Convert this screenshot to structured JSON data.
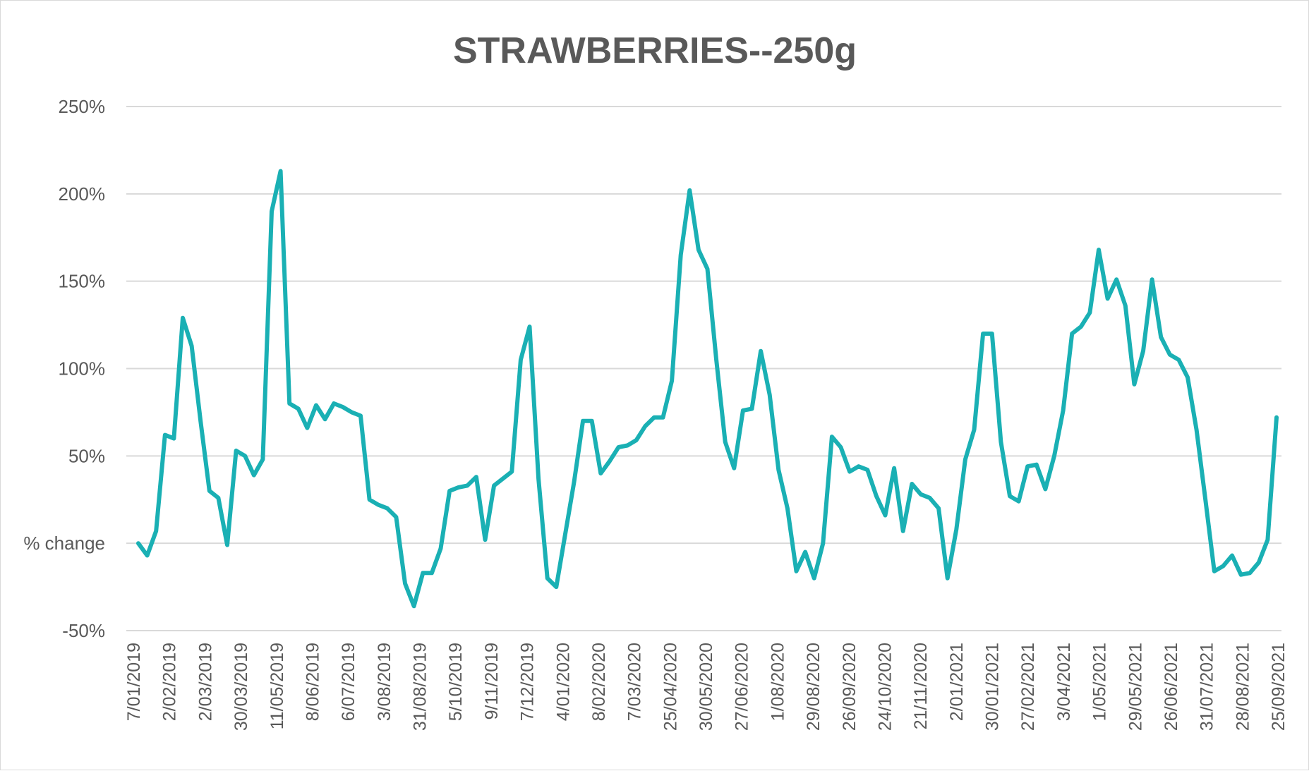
{
  "chart_data": {
    "type": "line",
    "title": "STRAWBERRIES--250g",
    "xlabel": "",
    "ylabel": "",
    "ylim": [
      -50,
      250
    ],
    "y_ticks": [
      {
        "value": 250,
        "label": "250%"
      },
      {
        "value": 200,
        "label": "200%"
      },
      {
        "value": 150,
        "label": "150%"
      },
      {
        "value": 100,
        "label": "100%"
      },
      {
        "value": 50,
        "label": "50%"
      },
      {
        "value": 0,
        "label": "% change"
      },
      {
        "value": -50,
        "label": "-50%"
      }
    ],
    "x_tick_labels": [
      "7/01/2019",
      "2/02/2019",
      "2/03/2019",
      "30/03/2019",
      "11/05/2019",
      "8/06/2019",
      "6/07/2019",
      "3/08/2019",
      "31/08/2019",
      "5/10/2019",
      "9/11/2019",
      "7/12/2019",
      "4/01/2020",
      "8/02/2020",
      "7/03/2020",
      "25/04/2020",
      "30/05/2020",
      "27/06/2020",
      "1/08/2020",
      "29/08/2020",
      "26/09/2020",
      "24/10/2020",
      "21/11/2020",
      "2/01/2021",
      "30/01/2021",
      "27/02/2021",
      "3/04/2021",
      "1/05/2021",
      "29/05/2021",
      "26/06/2021",
      "31/07/2021",
      "28/08/2021",
      "25/09/2021"
    ],
    "grid": true,
    "legend": "none",
    "line_color": "#1AB0B4",
    "series": [
      {
        "values": [
          0,
          -7,
          7,
          62,
          60,
          129,
          113,
          70,
          30,
          26,
          -1,
          53,
          50,
          39,
          48,
          190,
          213,
          80,
          77,
          66,
          79,
          71,
          80,
          78,
          75,
          73,
          25,
          22,
          20,
          15,
          -23,
          -36,
          -17,
          -17,
          -3,
          30,
          32,
          33,
          38,
          2,
          33,
          37,
          41,
          105,
          124,
          37,
          -20,
          -25,
          5,
          35,
          70,
          70,
          40,
          47,
          55,
          56,
          59,
          67,
          72,
          72,
          93,
          165,
          202,
          168,
          157,
          105,
          58,
          43,
          76,
          77,
          110,
          85,
          42,
          20,
          -16,
          -5,
          -20,
          0,
          61,
          55,
          41,
          44,
          42,
          27,
          16,
          43,
          7,
          34,
          28,
          26,
          20,
          -20,
          8,
          48,
          65,
          120,
          120,
          58,
          27,
          24,
          44,
          45,
          31,
          50,
          76,
          120,
          124,
          132,
          168,
          140,
          151,
          136,
          91,
          110,
          151,
          118,
          108,
          105,
          95,
          65,
          25,
          -16,
          -13,
          -7,
          -18,
          -17,
          -11,
          2,
          72
        ]
      }
    ]
  }
}
